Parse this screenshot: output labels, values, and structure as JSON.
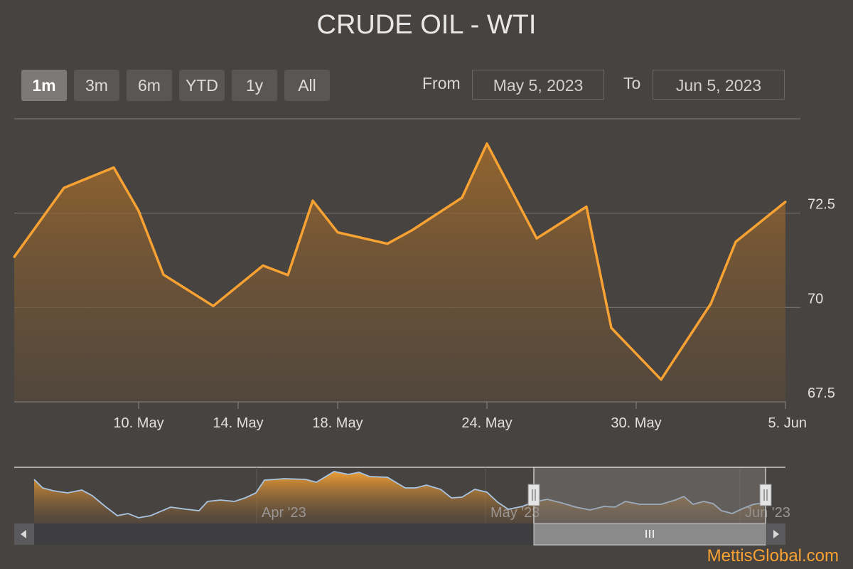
{
  "title": "CRUDE OIL - WTI",
  "range_selector": {
    "buttons": [
      {
        "label": "1m",
        "active": true
      },
      {
        "label": "3m",
        "active": false
      },
      {
        "label": "6m",
        "active": false
      },
      {
        "label": "YTD",
        "active": false
      },
      {
        "label": "1y",
        "active": false
      },
      {
        "label": "All",
        "active": false
      }
    ],
    "from_label": "From",
    "from_value": "May 5, 2023",
    "to_label": "To",
    "to_value": "Jun 5, 2023"
  },
  "brand": "MettisGlobal.com",
  "colors": {
    "background": "#474340",
    "line": "#f7a233",
    "grid": "#777370",
    "navigator_line": "#a9c4e0"
  },
  "chart_data": {
    "type": "area",
    "title": "CRUDE OIL - WTI",
    "x_ticks": [
      "10. May",
      "14. May",
      "18. May",
      "24. May",
      "30. May",
      "5. Jun"
    ],
    "x_tick_dates": [
      "2023-05-10",
      "2023-05-14",
      "2023-05-18",
      "2023-05-24",
      "2023-05-30",
      "2023-06-05"
    ],
    "y_ticks": [
      67.5,
      70,
      72.5
    ],
    "ylim": [
      67.5,
      75
    ],
    "xlim": [
      "2023-05-05",
      "2023-06-05"
    ],
    "grid": true,
    "series": [
      {
        "values": [
          {
            "date": "2023-05-05",
            "value": 71.34
          },
          {
            "date": "2023-05-07",
            "value": 73.17
          },
          {
            "date": "2023-05-09",
            "value": 73.71
          },
          {
            "date": "2023-05-10",
            "value": 72.56
          },
          {
            "date": "2023-05-11",
            "value": 70.87
          },
          {
            "date": "2023-05-13",
            "value": 70.04
          },
          {
            "date": "2023-05-15",
            "value": 71.11
          },
          {
            "date": "2023-05-16",
            "value": 70.86
          },
          {
            "date": "2023-05-17",
            "value": 72.83
          },
          {
            "date": "2023-05-18",
            "value": 71.99
          },
          {
            "date": "2023-05-20",
            "value": 71.69
          },
          {
            "date": "2023-05-21",
            "value": 72.05
          },
          {
            "date": "2023-05-23",
            "value": 72.91
          },
          {
            "date": "2023-05-24",
            "value": 74.34
          },
          {
            "date": "2023-05-26",
            "value": 71.83
          },
          {
            "date": "2023-05-28",
            "value": 72.67
          },
          {
            "date": "2023-05-29",
            "value": 69.46
          },
          {
            "date": "2023-05-31",
            "value": 68.09
          },
          {
            "date": "2023-06-02",
            "value": 70.1
          },
          {
            "date": "2023-06-03",
            "value": 71.74
          },
          {
            "date": "2023-06-05",
            "value": 72.8
          }
        ]
      }
    ],
    "navigator": {
      "x_ticks": [
        "Apr '23",
        "May '23",
        "Jun '23"
      ],
      "selected_range": [
        "2023-05-05",
        "2023-06-05"
      ]
    }
  }
}
